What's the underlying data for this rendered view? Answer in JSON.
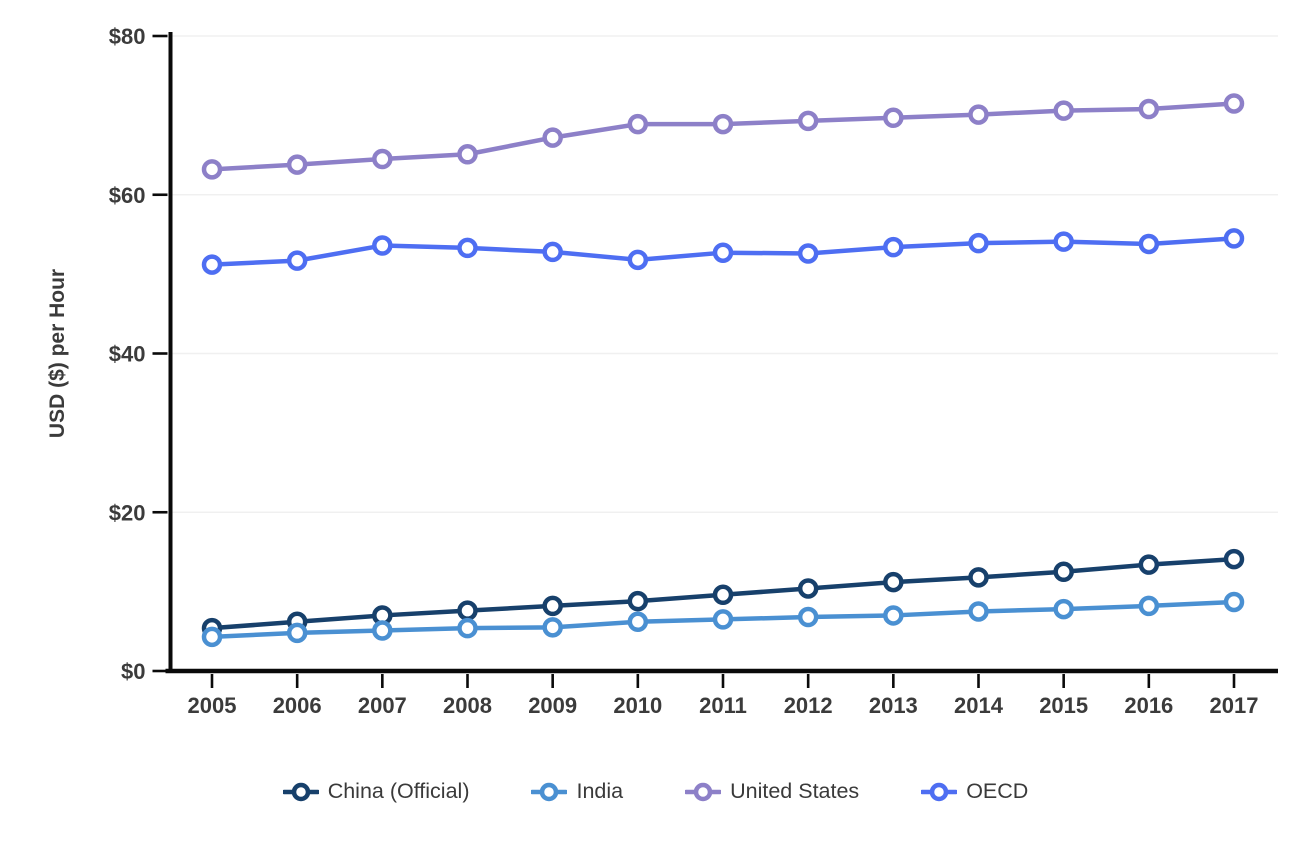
{
  "chart_data": {
    "type": "line",
    "title": "",
    "xlabel": "",
    "ylabel": "USD ($) per Hour",
    "x": [
      2005,
      2006,
      2007,
      2008,
      2009,
      2010,
      2011,
      2012,
      2013,
      2014,
      2015,
      2016,
      2017
    ],
    "series": [
      {
        "name": "China (Official)",
        "color": "#17406b",
        "values": [
          5.4,
          6.2,
          7.0,
          7.6,
          8.2,
          8.8,
          9.6,
          10.4,
          11.2,
          11.8,
          12.5,
          13.4,
          14.1
        ]
      },
      {
        "name": "India",
        "color": "#4a90d2",
        "values": [
          4.3,
          4.8,
          5.1,
          5.4,
          5.5,
          6.2,
          6.5,
          6.8,
          7.0,
          7.5,
          7.8,
          8.2,
          8.7
        ]
      },
      {
        "name": "United States",
        "color": "#8d80c8",
        "values": [
          63.2,
          63.8,
          64.5,
          65.1,
          67.2,
          68.9,
          68.9,
          69.3,
          69.7,
          70.1,
          70.6,
          70.8,
          71.5
        ]
      },
      {
        "name": "OECD",
        "color": "#4e6ef2",
        "values": [
          51.2,
          51.7,
          53.6,
          53.3,
          52.8,
          51.8,
          52.7,
          52.6,
          53.4,
          53.9,
          54.1,
          53.8,
          54.5
        ]
      }
    ],
    "ylim": [
      0,
      80
    ],
    "y_ticks": [
      {
        "value": 0,
        "label": "$0"
      },
      {
        "value": 20,
        "label": "$20"
      },
      {
        "value": 40,
        "label": "$40"
      },
      {
        "value": 60,
        "label": "$60"
      },
      {
        "value": 80,
        "label": "$80"
      }
    ],
    "grid": "horizontal",
    "legend_position": "bottom",
    "marker": "open-circle"
  }
}
